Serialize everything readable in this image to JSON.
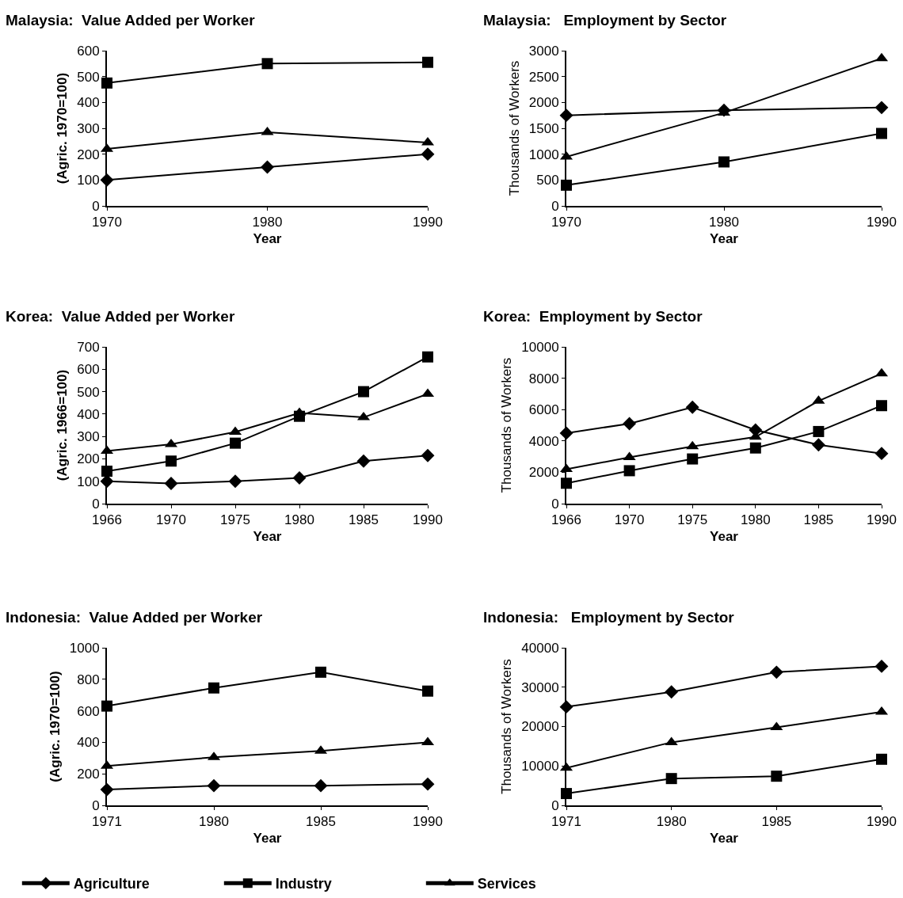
{
  "chart_data": [
    {
      "type": "line",
      "title": "Malaysia:  Value Added per Worker",
      "xlabel": "Year",
      "ylabel": "(Agric. 1970=100)",
      "categories": [
        "1970",
        "1980",
        "1990"
      ],
      "ylim": [
        0,
        600
      ],
      "yticks": [
        0,
        100,
        200,
        300,
        400,
        500,
        600
      ],
      "series": [
        {
          "color": "#000000",
          "marker": "diamond",
          "values": [
            100,
            150,
            200
          ]
        },
        {
          "color": "#000000",
          "marker": "square",
          "values": [
            475,
            550,
            555
          ]
        },
        {
          "color": "#000000",
          "marker": "triangle",
          "values": [
            220,
            285,
            245
          ]
        }
      ]
    },
    {
      "type": "line",
      "title": "Malaysia:   Employment by Sector",
      "xlabel": "Year",
      "ylabel": "Thousands of Workers",
      "categories": [
        "1970",
        "1980",
        "1990"
      ],
      "ylim": [
        0,
        3000
      ],
      "yticks": [
        0,
        500,
        1000,
        1500,
        2000,
        2500,
        3000
      ],
      "series": [
        {
          "color": "#000000",
          "marker": "diamond",
          "values": [
            1750,
            1850,
            1900
          ]
        },
        {
          "color": "#000000",
          "marker": "square",
          "values": [
            400,
            850,
            1400
          ]
        },
        {
          "color": "#000000",
          "marker": "triangle",
          "values": [
            950,
            1800,
            2850
          ]
        }
      ]
    },
    {
      "type": "line",
      "title": "Korea:  Value Added per Worker",
      "xlabel": "Year",
      "ylabel": "(Agric. 1966=100)",
      "categories": [
        "1966",
        "1970",
        "1975",
        "1980",
        "1985",
        "1990"
      ],
      "ylim": [
        0,
        700
      ],
      "yticks": [
        0,
        100,
        200,
        300,
        400,
        500,
        600,
        700
      ],
      "series": [
        {
          "color": "#000000",
          "marker": "diamond",
          "values": [
            100,
            90,
            100,
            115,
            190,
            215
          ]
        },
        {
          "color": "#000000",
          "marker": "square",
          "values": [
            145,
            190,
            270,
            390,
            500,
            655
          ]
        },
        {
          "color": "#000000",
          "marker": "triangle",
          "values": [
            235,
            265,
            320,
            405,
            385,
            490
          ]
        }
      ]
    },
    {
      "type": "line",
      "title": "Korea:  Employment by Sector",
      "xlabel": "Year",
      "ylabel": "Thousands of Workers",
      "categories": [
        "1966",
        "1970",
        "1975",
        "1980",
        "1985",
        "1990"
      ],
      "ylim": [
        0,
        10000
      ],
      "yticks": [
        0,
        2000,
        4000,
        6000,
        8000,
        10000
      ],
      "series": [
        {
          "color": "#000000",
          "marker": "diamond",
          "values": [
            4500,
            5100,
            6150,
            4700,
            3750,
            3200
          ]
        },
        {
          "color": "#000000",
          "marker": "square",
          "values": [
            1300,
            2100,
            2850,
            3550,
            4600,
            6250
          ]
        },
        {
          "color": "#000000",
          "marker": "triangle",
          "values": [
            2200,
            2950,
            3650,
            4250,
            6550,
            8300
          ]
        }
      ]
    },
    {
      "type": "line",
      "title": "Indonesia:  Value Added per Worker",
      "xlabel": "Year",
      "ylabel": "(Agric. 1970=100)",
      "categories": [
        "1971",
        "1980",
        "1985",
        "1990"
      ],
      "ylim": [
        0,
        1000
      ],
      "yticks": [
        0,
        200,
        400,
        600,
        800,
        1000
      ],
      "legend": "bottom",
      "series": [
        {
          "name": "Agriculture",
          "color": "#000000",
          "marker": "diamond",
          "values": [
            100,
            125,
            125,
            135
          ]
        },
        {
          "name": "Industry",
          "color": "#000000",
          "marker": "square",
          "values": [
            630,
            745,
            845,
            725
          ]
        },
        {
          "name": "Services",
          "color": "#000000",
          "marker": "triangle",
          "values": [
            250,
            305,
            345,
            400
          ]
        }
      ]
    },
    {
      "type": "line",
      "title": "Indonesia:   Employment by Sector",
      "xlabel": "Year",
      "ylabel": "Thousands of Workers",
      "categories": [
        "1971",
        "1980",
        "1985",
        "1990"
      ],
      "ylim": [
        0,
        40000
      ],
      "yticks": [
        0,
        10000,
        20000,
        30000,
        40000
      ],
      "series": [
        {
          "color": "#000000",
          "marker": "diamond",
          "values": [
            25000,
            28800,
            33800,
            35300
          ]
        },
        {
          "color": "#000000",
          "marker": "square",
          "values": [
            3000,
            6800,
            7400,
            11700
          ]
        },
        {
          "color": "#000000",
          "marker": "triangle",
          "values": [
            9500,
            16000,
            19800,
            23700
          ]
        }
      ]
    }
  ]
}
